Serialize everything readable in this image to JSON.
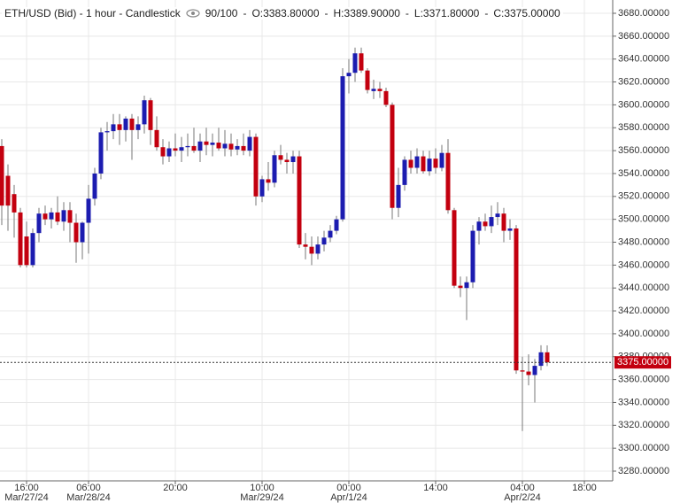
{
  "chart_data": {
    "type": "candlestick",
    "header": {
      "title": "ETH/USD (Bid) - 1 hour - Candlestick",
      "zoom": "90/100",
      "open": "O:3383.80000",
      "high": "H:3389.90000",
      "low": "L:3371.80000",
      "close": "C:3375.00000"
    },
    "categories": [
      null,
      null,
      null,
      null,
      "16:00",
      null,
      null,
      null,
      null,
      null,
      null,
      null,
      null,
      null,
      "06:00",
      null,
      null,
      null,
      null,
      null,
      null,
      null,
      null,
      null,
      null,
      null,
      null,
      null,
      "20:00",
      null,
      null,
      null,
      null,
      null,
      null,
      null,
      null,
      null,
      null,
      null,
      null,
      null,
      "10:00",
      null,
      null,
      null,
      null,
      null,
      null,
      null,
      null,
      null,
      null,
      null,
      null,
      null,
      "00:00",
      null,
      null,
      null,
      null,
      null,
      null,
      null,
      null,
      null,
      null,
      null,
      null,
      null,
      "14:00",
      null,
      null,
      null,
      null,
      null,
      null,
      null,
      null,
      null,
      null,
      null,
      null,
      null,
      "04:00",
      null,
      null,
      null,
      null,
      null,
      null,
      null,
      null,
      null,
      "18:00"
    ],
    "dates": [
      null,
      null,
      null,
      null,
      "Mar/27/24",
      null,
      null,
      null,
      null,
      null,
      null,
      null,
      null,
      null,
      "Mar/28/24",
      null,
      null,
      null,
      null,
      null,
      null,
      null,
      null,
      null,
      null,
      null,
      null,
      null,
      null,
      null,
      null,
      null,
      null,
      null,
      null,
      null,
      null,
      null,
      null,
      null,
      null,
      null,
      "Mar/29/24",
      null,
      null,
      null,
      null,
      null,
      null,
      null,
      null,
      null,
      null,
      null,
      null,
      null,
      "Apr/1/24",
      null,
      null,
      null,
      null,
      null,
      null,
      null,
      null,
      null,
      null,
      null,
      null,
      null,
      null,
      null,
      null,
      null,
      null,
      null,
      null,
      null,
      null,
      null,
      null,
      null,
      null,
      null,
      "Apr/2/24",
      null,
      null,
      null,
      null,
      null,
      null,
      null,
      null,
      null,
      null
    ],
    "open": [
      3564,
      3538,
      3522,
      3506,
      3485,
      3460,
      3488,
      3505,
      3500,
      3506,
      3498,
      3508,
      3497,
      3480,
      3497,
      3518,
      3540,
      3576,
      3577,
      3583,
      3578,
      3588,
      3578,
      3583,
      3604,
      3578,
      3563,
      3555,
      3562,
      3560,
      3563,
      3564,
      3560,
      3568,
      3565,
      3567,
      3562,
      3566,
      3561,
      3564,
      3560,
      3572,
      3520,
      3535,
      3532,
      3556,
      3552,
      3550,
      3555,
      3478,
      3476,
      3470,
      3478,
      3484,
      3490,
      3500,
      3625,
      3628,
      3645,
      3630,
      3612,
      3614,
      3612,
      3600,
      3510,
      3530,
      3552,
      3545,
      3555,
      3542,
      3553,
      3545,
      3558,
      3508,
      3442,
      3440,
      3445,
      3490,
      3498,
      3494,
      3502,
      3505,
      3490,
      3492,
      3368,
      3367,
      3364,
      3372,
      3383.8,
      null,
      null,
      null,
      null,
      null,
      null
    ],
    "high": [
      3570,
      3548,
      3530,
      3510,
      3498,
      3492,
      3510,
      3512,
      3510,
      3520,
      3515,
      3515,
      3505,
      3498,
      3530,
      3545,
      3580,
      3585,
      3592,
      3592,
      3590,
      3592,
      3590,
      3608,
      3606,
      3590,
      3570,
      3568,
      3575,
      3572,
      3575,
      3580,
      3575,
      3580,
      3575,
      3580,
      3578,
      3575,
      3570,
      3575,
      3578,
      3575,
      3538,
      3550,
      3560,
      3565,
      3558,
      3560,
      3560,
      3488,
      3485,
      3485,
      3490,
      3495,
      3503,
      3632,
      3640,
      3650,
      3650,
      3632,
      3622,
      3620,
      3615,
      3602,
      3545,
      3555,
      3560,
      3562,
      3560,
      3560,
      3562,
      3565,
      3570,
      3510,
      3450,
      3450,
      3495,
      3502,
      3505,
      3512,
      3515,
      3510,
      3500,
      3495,
      3380,
      3382,
      3378,
      3390,
      3389.9,
      null,
      null,
      null,
      null,
      null,
      null
    ],
    "low": [
      3495,
      3490,
      3484,
      3458,
      3458,
      3458,
      3480,
      3495,
      3492,
      3495,
      3490,
      3480,
      3462,
      3465,
      3470,
      3512,
      3535,
      3560,
      3570,
      3565,
      3568,
      3552,
      3570,
      3575,
      3565,
      3560,
      3548,
      3550,
      3555,
      3550,
      3555,
      3558,
      3550,
      3556,
      3555,
      3560,
      3555,
      3555,
      3556,
      3556,
      3555,
      3512,
      3515,
      3525,
      3528,
      3548,
      3540,
      3540,
      3475,
      3465,
      3460,
      3465,
      3472,
      3480,
      3487,
      3498,
      3610,
      3620,
      3628,
      3610,
      3605,
      3606,
      3598,
      3500,
      3502,
      3525,
      3540,
      3540,
      3540,
      3538,
      3540,
      3542,
      3505,
      3440,
      3432,
      3412,
      3440,
      3478,
      3490,
      3488,
      3495,
      3480,
      3482,
      3365,
      3315,
      3355,
      3340,
      3368,
      3371.8,
      null,
      null,
      null,
      null,
      null,
      null
    ],
    "close": [
      3512,
      3512,
      3506,
      3460,
      3460,
      3488,
      3505,
      3500,
      3506,
      3498,
      3508,
      3497,
      3480,
      3497,
      3518,
      3540,
      3576,
      3577,
      3583,
      3578,
      3588,
      3578,
      3583,
      3604,
      3578,
      3563,
      3555,
      3562,
      3560,
      3563,
      3564,
      3560,
      3568,
      3565,
      3567,
      3562,
      3566,
      3561,
      3564,
      3560,
      3572,
      3520,
      3535,
      3532,
      3556,
      3552,
      3550,
      3555,
      3478,
      3476,
      3470,
      3478,
      3484,
      3490,
      3500,
      3625,
      3628,
      3645,
      3630,
      3613,
      3614,
      3612,
      3600,
      3510,
      3530,
      3552,
      3545,
      3555,
      3542,
      3553,
      3545,
      3558,
      3508,
      3442,
      3440,
      3445,
      3490,
      3498,
      3494,
      3502,
      3505,
      3490,
      3492,
      3368,
      3367,
      3364,
      3372,
      3383.8,
      3375,
      null,
      null,
      null,
      null,
      null,
      null
    ],
    "up_color": "#1c1cb0",
    "down_color": "#c3000f",
    "wick_color": "#777777",
    "grid": true,
    "ylim": [
      3271.5,
      3691.6
    ],
    "yticks": [
      {
        "value": 3280,
        "label": "3280.00000"
      },
      {
        "value": 3300,
        "label": "3300.00000"
      },
      {
        "value": 3320,
        "label": "3320.00000"
      },
      {
        "value": 3340,
        "label": "3340.00000"
      },
      {
        "value": 3360,
        "label": "3360.00000"
      },
      {
        "value": 3380,
        "label": "3380.00000"
      },
      {
        "value": 3400,
        "label": "3400.00000"
      },
      {
        "value": 3420,
        "label": "3420.00000"
      },
      {
        "value": 3440,
        "label": "3440.00000"
      },
      {
        "value": 3460,
        "label": "3460.00000"
      },
      {
        "value": 3480,
        "label": "3480.00000"
      },
      {
        "value": 3500,
        "label": "3500.00000"
      },
      {
        "value": 3520,
        "label": "3520.00000"
      },
      {
        "value": 3540,
        "label": "3540.00000"
      },
      {
        "value": 3560,
        "label": "3560.00000"
      },
      {
        "value": 3580,
        "label": "3580.00000"
      },
      {
        "value": 3600,
        "label": "3600.00000"
      },
      {
        "value": 3620,
        "label": "3620.00000"
      },
      {
        "value": 3640,
        "label": "3640.00000"
      },
      {
        "value": 3660,
        "label": "3660.00000"
      },
      {
        "value": 3680,
        "label": "3680.00000"
      }
    ],
    "last_price": {
      "value": 3375,
      "label": "3375.00000",
      "color": "#c3000f"
    }
  }
}
